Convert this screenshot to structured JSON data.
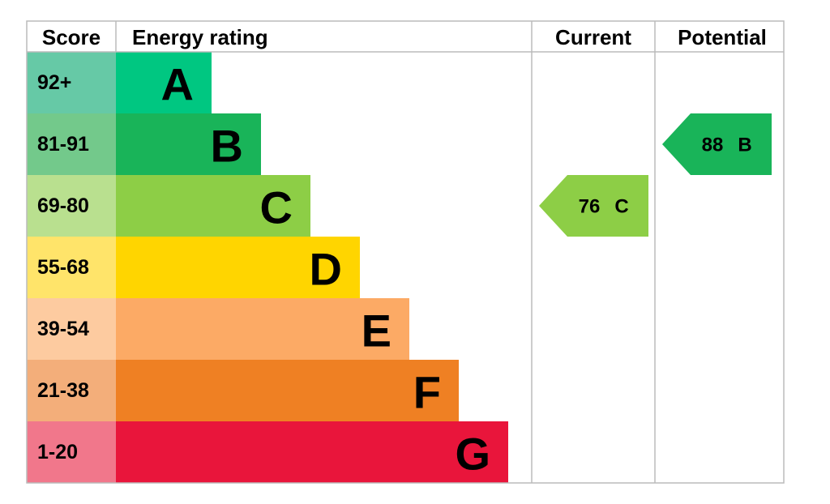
{
  "header": {
    "score": "Score",
    "rating": "Energy rating",
    "current": "Current",
    "potential": "Potential"
  },
  "bands": [
    {
      "score": "92+",
      "letter": "A",
      "color": "#00c781",
      "light": "#66c9a6"
    },
    {
      "score": "81-91",
      "letter": "B",
      "color": "#19b459",
      "light": "#73c98b"
    },
    {
      "score": "69-80",
      "letter": "C",
      "color": "#8dce46",
      "light": "#b9e08f"
    },
    {
      "score": "55-68",
      "letter": "D",
      "color": "#ffd500",
      "light": "#ffe46a"
    },
    {
      "score": "39-54",
      "letter": "E",
      "color": "#fcaa65",
      "light": "#fdcba0"
    },
    {
      "score": "21-38",
      "letter": "F",
      "color": "#ef8023",
      "light": "#f3ae7a"
    },
    {
      "score": "1-20",
      "letter": "G",
      "color": "#e9153b",
      "light": "#f1778b"
    }
  ],
  "current": {
    "value": 76,
    "letter": "C"
  },
  "potential": {
    "value": 88,
    "letter": "B"
  }
}
